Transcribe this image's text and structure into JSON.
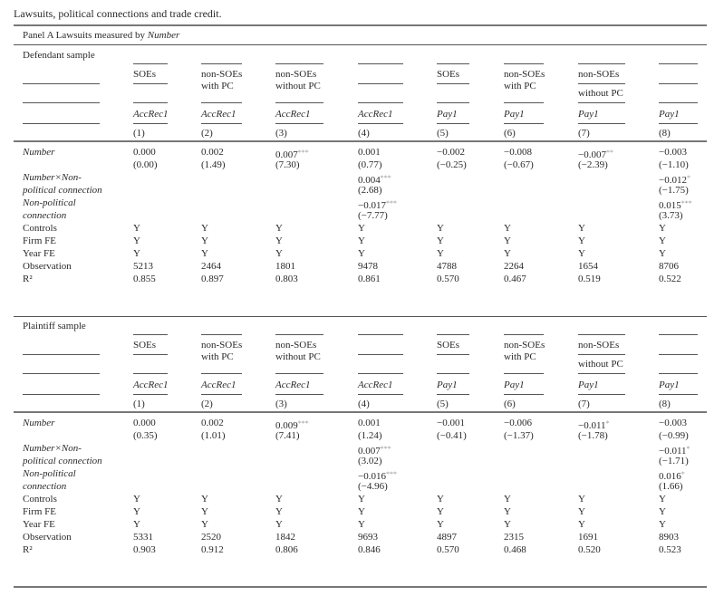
{
  "title": "Lawsuits, political connections and trade credit.",
  "panel_title": {
    "text": "Panel A Lawsuits measured by ",
    "italic": "Number"
  },
  "panels": [
    {
      "sample": "Defendant sample",
      "groups": [
        "SOEs",
        "non-SOEs\nwith PC",
        "non-SOEs\nwithout PC",
        "",
        "SOEs",
        "non-SOEs\nwith PC",
        "non-SOEs|without PC",
        ""
      ],
      "depvars": [
        "AccRec1",
        "AccRec1",
        "AccRec1",
        "AccRec1",
        "Pay1",
        "Pay1",
        "Pay1",
        "Pay1"
      ],
      "colnums": [
        "(1)",
        "(2)",
        "(3)",
        "(4)",
        "(5)",
        "(6)",
        "(7)",
        "(8)"
      ],
      "rows": [
        {
          "label": "Number",
          "italic": true,
          "cells": [
            [
              "0.000",
              "",
              "(0.00)"
            ],
            [
              "0.002",
              "",
              "(1.49)"
            ],
            [
              "0.007",
              "***",
              "(7.30)"
            ],
            [
              "0.001",
              "",
              "(0.77)"
            ],
            [
              "−0.002",
              "",
              "(−0.25)"
            ],
            [
              "−0.008",
              "",
              "(−0.67)"
            ],
            [
              "−0.007",
              "**",
              "(−2.39)"
            ],
            [
              "−0.003",
              "",
              "(−1.10)"
            ]
          ]
        },
        {
          "label": "Number×Non-\npolitical connection",
          "italic": true,
          "cells": [
            null,
            null,
            null,
            [
              "0.004",
              "***",
              "(2.68)"
            ],
            null,
            null,
            null,
            [
              "−0.012",
              "*",
              "(−1.75)"
            ]
          ]
        },
        {
          "label": "Non-political\nconnection",
          "italic": true,
          "cells": [
            null,
            null,
            null,
            [
              "−0.017",
              "***",
              "(−7.77)"
            ],
            null,
            null,
            null,
            [
              "0.015",
              "***",
              "(3.73)"
            ]
          ]
        }
      ],
      "stats": [
        {
          "label": "Controls",
          "values": [
            "Y",
            "Y",
            "Y",
            "Y",
            "Y",
            "Y",
            "Y",
            "Y"
          ]
        },
        {
          "label": "Firm FE",
          "values": [
            "Y",
            "Y",
            "Y",
            "Y",
            "Y",
            "Y",
            "Y",
            "Y"
          ]
        },
        {
          "label": "Year FE",
          "values": [
            "Y",
            "Y",
            "Y",
            "Y",
            "Y",
            "Y",
            "Y",
            "Y"
          ]
        },
        {
          "label": "Observation",
          "values": [
            "5213",
            "2464",
            "1801",
            "9478",
            "4788",
            "2264",
            "1654",
            "8706"
          ]
        },
        {
          "label": "R²",
          "values": [
            "0.855",
            "0.897",
            "0.803",
            "0.861",
            "0.570",
            "0.467",
            "0.519",
            "0.522"
          ]
        }
      ]
    },
    {
      "sample": "Plaintiff sample",
      "groups": [
        "SOEs",
        "non-SOEs\nwith PC",
        "non-SOEs\nwithout PC",
        "",
        "SOEs",
        "non-SOEs\nwith PC",
        "non-SOEs|without PC",
        ""
      ],
      "depvars": [
        "AccRec1",
        "AccRec1",
        "AccRec1",
        "AccRec1",
        "Pay1",
        "Pay1",
        "Pay1",
        "Pay1"
      ],
      "colnums": [
        "(1)",
        "(2)",
        "(3)",
        "(4)",
        "(5)",
        "(6)",
        "(7)",
        "(8)"
      ],
      "rows": [
        {
          "label": "Number",
          "italic": true,
          "cells": [
            [
              "0.000",
              "",
              "(0.35)"
            ],
            [
              "0.002",
              "",
              "(1.01)"
            ],
            [
              "0.009",
              "***",
              "(7.41)"
            ],
            [
              "0.001",
              "",
              "(1.24)"
            ],
            [
              "−0.001",
              "",
              "(−0.41)"
            ],
            [
              "−0.006",
              "",
              "(−1.37)"
            ],
            [
              "−0.011",
              "*",
              "(−1.78)"
            ],
            [
              "−0.003",
              "",
              "(−0.99)"
            ]
          ]
        },
        {
          "label": "Number×Non-\npolitical connection",
          "italic": true,
          "cells": [
            null,
            null,
            null,
            [
              "0.007",
              "***",
              "(3.02)"
            ],
            null,
            null,
            null,
            [
              "−0.011",
              "*",
              "(−1.71)"
            ]
          ]
        },
        {
          "label": "Non-political\nconnection",
          "italic": true,
          "cells": [
            null,
            null,
            null,
            [
              "−0.016",
              "***",
              "(−4.96)"
            ],
            null,
            null,
            null,
            [
              "0.016",
              "*",
              "(1.66)"
            ]
          ]
        }
      ],
      "stats": [
        {
          "label": "Controls",
          "values": [
            "Y",
            "Y",
            "Y",
            "Y",
            "Y",
            "Y",
            "Y",
            "Y"
          ]
        },
        {
          "label": "Firm FE",
          "values": [
            "Y",
            "Y",
            "Y",
            "Y",
            "Y",
            "Y",
            "Y",
            "Y"
          ]
        },
        {
          "label": "Year FE",
          "values": [
            "Y",
            "Y",
            "Y",
            "Y",
            "Y",
            "Y",
            "Y",
            "Y"
          ]
        },
        {
          "label": "Observation",
          "values": [
            "5331",
            "2520",
            "1842",
            "9693",
            "4897",
            "2315",
            "1691",
            "8903"
          ]
        },
        {
          "label": "R²",
          "values": [
            "0.903",
            "0.912",
            "0.806",
            "0.846",
            "0.570",
            "0.468",
            "0.520",
            "0.523"
          ]
        }
      ]
    }
  ]
}
